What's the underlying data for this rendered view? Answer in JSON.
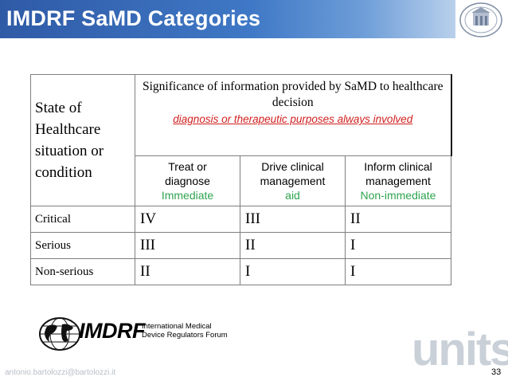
{
  "slide": {
    "title": "IMDRF SaMD Categories",
    "page_number": "33",
    "footer_email": "antonio.bartolozzi@bartolozzi.it",
    "watermark": "units"
  },
  "table": {
    "state_header": [
      "State of",
      "Healthcare",
      "situation or",
      "condition"
    ],
    "significance_header": "Significance of information provided by SaMD to healthcare decision",
    "significance_note": "diagnosis or therapeutic purposes always involved",
    "columns": [
      {
        "line1": "Treat or",
        "line2": "diagnose",
        "sub": "Immediate"
      },
      {
        "line1": "Drive clinical",
        "line2": "management",
        "sub": "aid"
      },
      {
        "line1": "Inform clinical",
        "line2": "management",
        "sub": "Non-immediate"
      }
    ],
    "rows": [
      {
        "label": "Critical",
        "values": [
          "IV",
          "III",
          "II"
        ]
      },
      {
        "label": "Serious",
        "values": [
          "III",
          "II",
          "I"
        ]
      },
      {
        "label": "Non-serious",
        "values": [
          "II",
          "I",
          "I"
        ]
      }
    ]
  },
  "logo": {
    "name": "IMDRF",
    "tagline_line1": "International Medical",
    "tagline_line2": "Device Regulators Forum"
  },
  "colors": {
    "header_blue": "#3f78c6",
    "note_red": "#d0201f",
    "sub_green": "#2ea44f"
  }
}
